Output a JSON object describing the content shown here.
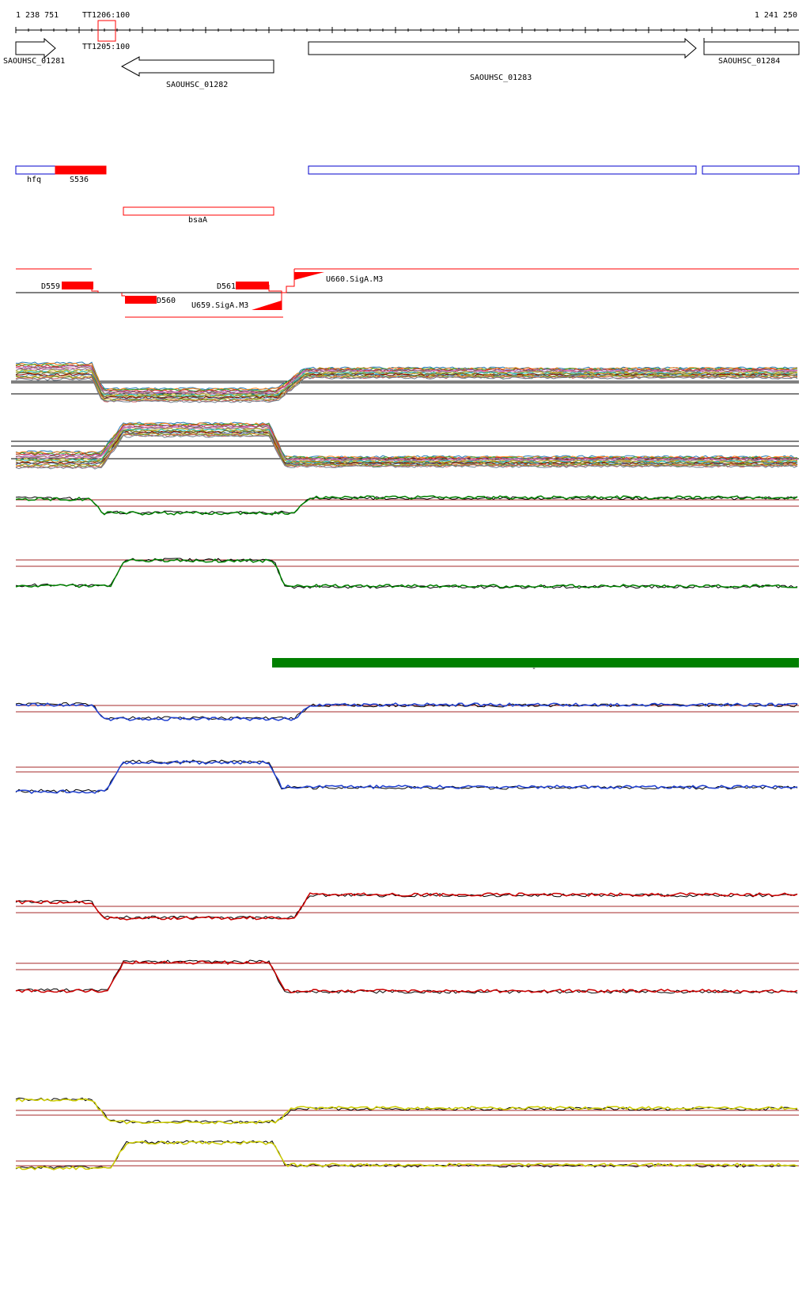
{
  "coords": {
    "start": "1 238 751",
    "end": "1 241 250"
  },
  "terminators": {
    "tt1206": "TT1206:100",
    "tt1205": "TT1205:100"
  },
  "genes": [
    {
      "label": "SAOUHSC_01281",
      "strand": "+"
    },
    {
      "label": "SAOUHSC_01282",
      "strand": "-"
    },
    {
      "label": "SAOUHSC_01283",
      "strand": "+"
    },
    {
      "label": "SAOUHSC_01284",
      "strand": "+"
    }
  ],
  "annotations": {
    "hfq": "hfq",
    "s536": "S536",
    "bsaa": "bsaA"
  },
  "segments": {
    "d559": "D559",
    "d560": "D560",
    "d561": "D561",
    "u659": "U659.SigA.M3",
    "u660": "U660.SigA.M3"
  },
  "colors": {
    "gene_outline": "#000000",
    "annotation_blue": "#0000cc",
    "annotation_red": "#ff0000",
    "segment_red": "#ff0000",
    "condition_green": "#008000",
    "track_green": "#008000",
    "track_blue": "#1f3fd0",
    "track_red": "#cc0000",
    "track_yellow": "#cccc00",
    "threshold": "#a52a2a"
  },
  "green_bar_mark": "-"
}
